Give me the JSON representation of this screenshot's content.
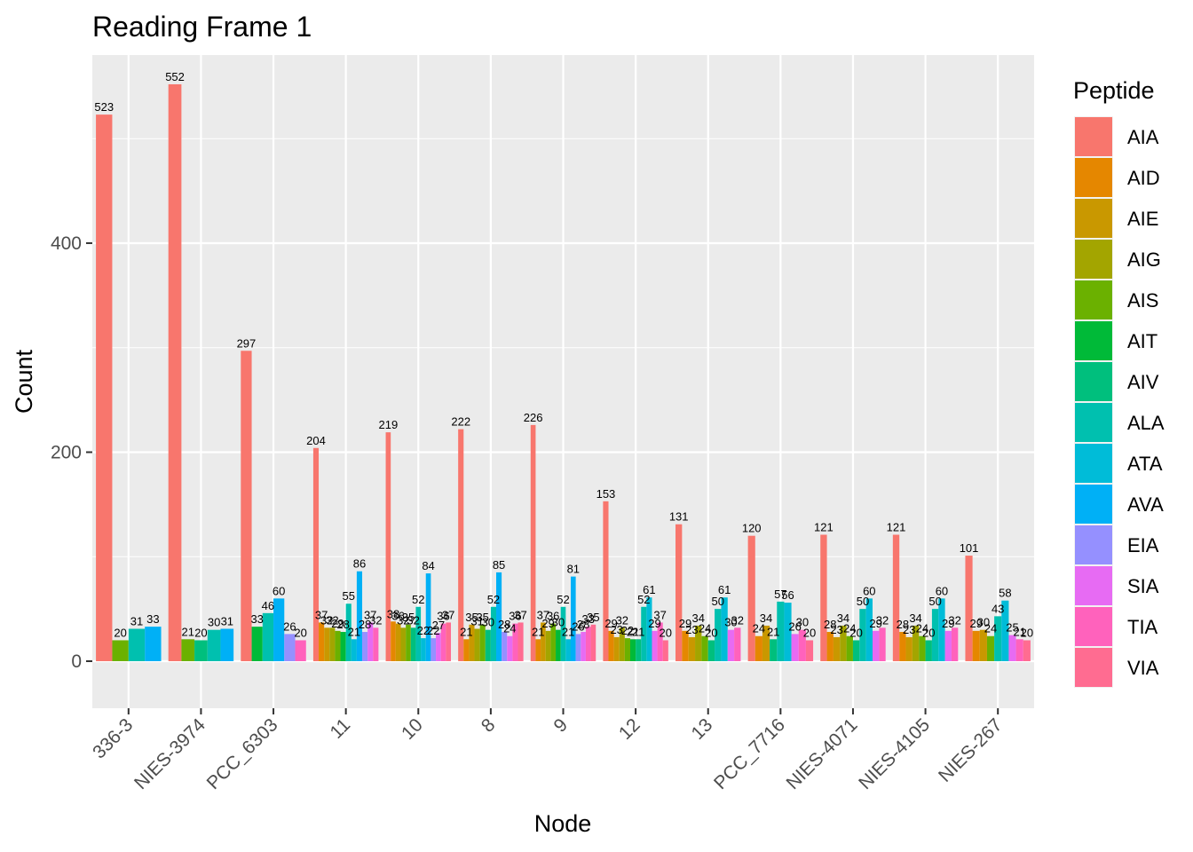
{
  "chart_data": {
    "type": "bar",
    "title": "Reading Frame 1",
    "xlabel": "Node",
    "ylabel": "Count",
    "ylim": [
      -45,
      580
    ],
    "yticks": [
      0,
      200,
      400
    ],
    "grid": true,
    "legend_title": "Peptide",
    "legend_position": "right",
    "peptides": [
      "AIA",
      "AID",
      "AIE",
      "AIG",
      "AIS",
      "AIT",
      "AIV",
      "ALA",
      "ATA",
      "AVA",
      "EIA",
      "SIA",
      "TIA",
      "VIA"
    ],
    "colors": {
      "AIA": "#F8766D",
      "AID": "#E58700",
      "AIE": "#C99800",
      "AIG": "#A3A500",
      "AIS": "#6BB100",
      "AIT": "#00BA38",
      "AIV": "#00BF7D",
      "ALA": "#00C0AF",
      "ATA": "#00BCD8",
      "AVA": "#00B0F6",
      "EIA": "#9590FF",
      "SIA": "#E76BF3",
      "TIA": "#FF62BC",
      "VIA": "#FF6C91"
    },
    "categories": [
      "336-3",
      "NIES-3974",
      "PCC_6303",
      "11",
      "10",
      "8",
      "9",
      "12",
      "13",
      "PCC_7716",
      "NIES-4071",
      "NIES-4105",
      "NIES-267"
    ],
    "groups": [
      {
        "node": "336-3",
        "bars": [
          [
            "AIA",
            523
          ],
          [
            "AIS",
            20
          ],
          [
            "ALA",
            31
          ],
          [
            "AVA",
            33
          ]
        ]
      },
      {
        "node": "NIES-3974",
        "bars": [
          [
            "AIA",
            552
          ],
          [
            "AIS",
            21
          ],
          [
            "AIV",
            20
          ],
          [
            "ALA",
            30
          ],
          [
            "AVA",
            31
          ]
        ]
      },
      {
        "node": "PCC_6303",
        "bars": [
          [
            "AIA",
            297
          ],
          [
            "AIT",
            33
          ],
          [
            "ALA",
            46
          ],
          [
            "AVA",
            60
          ],
          [
            "EIA",
            26
          ],
          [
            "TIA",
            20
          ]
        ]
      },
      {
        "node": "11",
        "bars": [
          [
            "AIA",
            204
          ],
          [
            "AID",
            37
          ],
          [
            "AIE",
            32
          ],
          [
            "AIG",
            32
          ],
          [
            "AIS",
            29
          ],
          [
            "AIT",
            28
          ],
          [
            "ALA",
            55
          ],
          [
            "ATA",
            21
          ],
          [
            "AVA",
            86
          ],
          [
            "EIA",
            28
          ],
          [
            "SIA",
            37
          ],
          [
            "TIA",
            32
          ]
        ]
      },
      {
        "node": "10",
        "bars": [
          [
            "AIA",
            219
          ],
          [
            "AID",
            38
          ],
          [
            "AIE",
            36
          ],
          [
            "AIG",
            32
          ],
          [
            "AIS",
            35
          ],
          [
            "AIV",
            32
          ],
          [
            "ALA",
            52
          ],
          [
            "ATA",
            22
          ],
          [
            "AVA",
            84
          ],
          [
            "EIA",
            22
          ],
          [
            "SIA",
            27
          ],
          [
            "TIA",
            36
          ],
          [
            "VIA",
            37
          ]
        ]
      },
      {
        "node": "8",
        "bars": [
          [
            "AIA",
            222
          ],
          [
            "AID",
            21
          ],
          [
            "AIE",
            35
          ],
          [
            "AIG",
            31
          ],
          [
            "AIS",
            35
          ],
          [
            "AIV",
            30
          ],
          [
            "ALA",
            52
          ],
          [
            "AVA",
            85
          ],
          [
            "EIA",
            28
          ],
          [
            "SIA",
            24
          ],
          [
            "TIA",
            36
          ],
          [
            "VIA",
            37
          ]
        ]
      },
      {
        "node": "9",
        "bars": [
          [
            "AIA",
            226
          ],
          [
            "AID",
            21
          ],
          [
            "AIE",
            37
          ],
          [
            "AIG",
            29
          ],
          [
            "AIS",
            36
          ],
          [
            "AIT",
            30
          ],
          [
            "ALA",
            52
          ],
          [
            "ATA",
            21
          ],
          [
            "AVA",
            81
          ],
          [
            "EIA",
            26
          ],
          [
            "SIA",
            28
          ],
          [
            "TIA",
            33
          ],
          [
            "VIA",
            35
          ]
        ]
      },
      {
        "node": "12",
        "bars": [
          [
            "AIA",
            153
          ],
          [
            "AID",
            29
          ],
          [
            "AIE",
            23
          ],
          [
            "AIG",
            32
          ],
          [
            "AIS",
            22
          ],
          [
            "AIT",
            21
          ],
          [
            "AIV",
            21
          ],
          [
            "ALA",
            52
          ],
          [
            "ATA",
            61
          ],
          [
            "SIA",
            29
          ],
          [
            "TIA",
            37
          ],
          [
            "VIA",
            20
          ]
        ]
      },
      {
        "node": "13",
        "bars": [
          [
            "AIA",
            131
          ],
          [
            "AID",
            29
          ],
          [
            "AIE",
            23
          ],
          [
            "AIG",
            34
          ],
          [
            "AIS",
            24
          ],
          [
            "AIV",
            20
          ],
          [
            "ALA",
            50
          ],
          [
            "ATA",
            61
          ],
          [
            "SIA",
            30
          ],
          [
            "TIA",
            32
          ]
        ]
      },
      {
        "node": "PCC_7716",
        "bars": [
          [
            "AIA",
            120
          ],
          [
            "AID",
            24
          ],
          [
            "AIE",
            34
          ],
          [
            "AIV",
            21
          ],
          [
            "ALA",
            57
          ],
          [
            "ATA",
            56
          ],
          [
            "SIA",
            26
          ],
          [
            "TIA",
            30
          ],
          [
            "VIA",
            20
          ]
        ]
      },
      {
        "node": "NIES-4071",
        "bars": [
          [
            "AIA",
            121
          ],
          [
            "AID",
            28
          ],
          [
            "AIE",
            23
          ],
          [
            "AIG",
            34
          ],
          [
            "AIS",
            24
          ],
          [
            "AIV",
            20
          ],
          [
            "ALA",
            50
          ],
          [
            "ATA",
            60
          ],
          [
            "SIA",
            29
          ],
          [
            "TIA",
            32
          ]
        ]
      },
      {
        "node": "NIES-4105",
        "bars": [
          [
            "AIA",
            121
          ],
          [
            "AID",
            28
          ],
          [
            "AIE",
            23
          ],
          [
            "AIG",
            34
          ],
          [
            "AIS",
            24
          ],
          [
            "AIV",
            20
          ],
          [
            "ALA",
            50
          ],
          [
            "ATA",
            60
          ],
          [
            "SIA",
            29
          ],
          [
            "TIA",
            32
          ]
        ]
      },
      {
        "node": "NIES-267",
        "bars": [
          [
            "AIA",
            101
          ],
          [
            "AID",
            29
          ],
          [
            "AIE",
            30
          ],
          [
            "AIS",
            24
          ],
          [
            "ALA",
            43
          ],
          [
            "ATA",
            58
          ],
          [
            "SIA",
            25
          ],
          [
            "TIA",
            21
          ],
          [
            "VIA",
            20
          ]
        ]
      }
    ]
  }
}
